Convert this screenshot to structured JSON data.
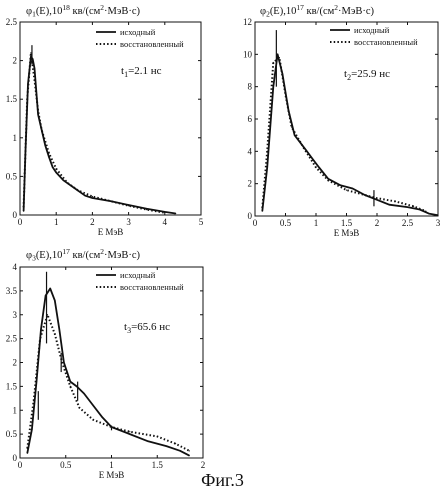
{
  "caption": "Фиг.3",
  "chart_data": [
    {
      "type": "line",
      "id": "p1",
      "title_prefix": "φ",
      "title_index": "1",
      "title_mid": "(E),10",
      "title_exp": "18",
      "title_unit": " кв/(см",
      "title_exp2": "2",
      "title_end": "·МэВ·с)",
      "xlabel": "Е МэВ",
      "xlim": [
        0,
        5
      ],
      "ylim": [
        0,
        2.5
      ],
      "xticks": [
        0,
        1,
        2,
        3,
        4,
        5
      ],
      "yticks": [
        0,
        0.5,
        1,
        1.5,
        2,
        2.5
      ],
      "time_label_base": "t",
      "time_label_sub": "1",
      "time_label_value": "=2.1 нс",
      "legend": [
        "исходный",
        "восстановленный"
      ],
      "series": [
        {
          "name": "исходный",
          "style": "solid",
          "x": [
            0.1,
            0.15,
            0.22,
            0.3,
            0.35,
            0.4,
            0.45,
            0.5,
            0.6,
            0.7,
            0.8,
            0.9,
            1.0,
            1.2,
            1.5,
            1.8,
            2.0,
            2.5,
            3.0,
            3.5,
            4.0,
            4.3
          ],
          "y": [
            0.05,
            0.8,
            1.7,
            2.05,
            2.02,
            1.9,
            1.6,
            1.3,
            1.1,
            0.9,
            0.75,
            0.62,
            0.55,
            0.45,
            0.35,
            0.25,
            0.22,
            0.18,
            0.13,
            0.08,
            0.04,
            0.02
          ]
        },
        {
          "name": "восстановленный",
          "style": "dotted",
          "x": [
            0.1,
            0.2,
            0.3,
            0.4,
            0.5,
            0.6,
            0.8,
            1.0,
            1.3,
            1.6,
            2.0,
            2.5,
            3.0,
            3.5,
            4.0
          ],
          "y": [
            0.1,
            1.5,
            2.1,
            1.75,
            1.35,
            1.1,
            0.8,
            0.6,
            0.42,
            0.32,
            0.24,
            0.18,
            0.12,
            0.07,
            0.03
          ]
        }
      ],
      "error_bars": [
        {
          "x": 0.33,
          "low": 1.95,
          "high": 2.2
        }
      ]
    },
    {
      "type": "line",
      "id": "p2",
      "title_prefix": "φ",
      "title_index": "2",
      "title_mid": "(E),10",
      "title_exp": "17",
      "title_unit": " кв/(см",
      "title_exp2": "2",
      "title_end": "·МэВ·с)",
      "xlabel": "Е МэВ",
      "xlim": [
        0,
        3
      ],
      "ylim": [
        0,
        12
      ],
      "xticks": [
        0,
        0.5,
        1,
        1.5,
        2,
        2.5,
        3
      ],
      "yticks": [
        0,
        2,
        4,
        6,
        8,
        10,
        12
      ],
      "time_label_base": "t",
      "time_label_sub": "2",
      "time_label_value": "=25.9 нс",
      "legend": [
        "исходный",
        "восстановленный"
      ],
      "series": [
        {
          "name": "исходный",
          "style": "solid",
          "x": [
            0.12,
            0.2,
            0.3,
            0.37,
            0.45,
            0.55,
            0.65,
            0.75,
            0.85,
            0.95,
            1.05,
            1.2,
            1.4,
            1.6,
            1.8,
            2.0,
            2.2,
            2.5,
            2.7,
            2.85,
            3.0
          ],
          "y": [
            0.3,
            3.0,
            8.0,
            10.0,
            8.8,
            6.5,
            5.0,
            4.5,
            4.0,
            3.5,
            3.0,
            2.3,
            1.9,
            1.7,
            1.3,
            1.0,
            0.7,
            0.55,
            0.4,
            0.15,
            0.05
          ]
        },
        {
          "name": "восстановленный",
          "style": "dotted",
          "x": [
            0.12,
            0.2,
            0.3,
            0.4,
            0.5,
            0.6,
            0.8,
            1.0,
            1.2,
            1.5,
            1.8,
            2.0,
            2.3,
            2.6,
            2.8
          ],
          "y": [
            0.5,
            4.0,
            9.5,
            9.8,
            7.5,
            5.5,
            4.2,
            3.0,
            2.2,
            1.6,
            1.3,
            1.1,
            0.9,
            0.6,
            0.3
          ]
        }
      ],
      "error_bars": [
        {
          "x": 0.35,
          "low": 8.0,
          "high": 11.5
        },
        {
          "x": 1.95,
          "low": 0.6,
          "high": 1.6
        }
      ]
    },
    {
      "type": "line",
      "id": "p3",
      "title_prefix": "φ",
      "title_index": "3",
      "title_mid": "(E),10",
      "title_exp": "17",
      "title_unit": " кв/(см",
      "title_exp2": "2",
      "title_end": "·МэВ·с)",
      "xlabel": "Е МэВ",
      "xlim": [
        0,
        2
      ],
      "ylim": [
        0,
        4
      ],
      "xticks": [
        0,
        0.5,
        1,
        1.5,
        2
      ],
      "yticks": [
        0,
        0.5,
        1,
        1.5,
        2,
        2.5,
        3,
        3.5,
        4
      ],
      "time_label_base": "t",
      "time_label_sub": "3",
      "time_label_value": "=65.6 нс",
      "legend": [
        "исходный",
        "восстановленный"
      ],
      "series": [
        {
          "name": "исходный",
          "style": "solid",
          "x": [
            0.08,
            0.13,
            0.18,
            0.23,
            0.28,
            0.33,
            0.38,
            0.43,
            0.48,
            0.55,
            0.62,
            0.7,
            0.8,
            0.9,
            1.0,
            1.2,
            1.4,
            1.6,
            1.75,
            1.85
          ],
          "y": [
            0.1,
            0.6,
            1.6,
            2.7,
            3.4,
            3.55,
            3.3,
            2.7,
            2.0,
            1.6,
            1.5,
            1.35,
            1.1,
            0.85,
            0.65,
            0.5,
            0.35,
            0.25,
            0.15,
            0.05
          ]
        },
        {
          "name": "восстановленный",
          "style": "dotted",
          "x": [
            0.08,
            0.15,
            0.22,
            0.3,
            0.38,
            0.46,
            0.55,
            0.65,
            0.8,
            1.0,
            1.2,
            1.5,
            1.7,
            1.85
          ],
          "y": [
            0.2,
            1.2,
            2.5,
            3.0,
            2.6,
            2.0,
            1.5,
            1.05,
            0.8,
            0.65,
            0.55,
            0.45,
            0.3,
            0.15
          ]
        }
      ],
      "error_bars": [
        {
          "x": 0.2,
          "low": 0.8,
          "high": 1.4
        },
        {
          "x": 0.29,
          "low": 2.4,
          "high": 3.9
        },
        {
          "x": 0.45,
          "low": 1.8,
          "high": 2.2
        },
        {
          "x": 0.63,
          "low": 1.2,
          "high": 1.6
        },
        {
          "x": 1.0,
          "low": 0.58,
          "high": 0.68
        }
      ]
    }
  ]
}
